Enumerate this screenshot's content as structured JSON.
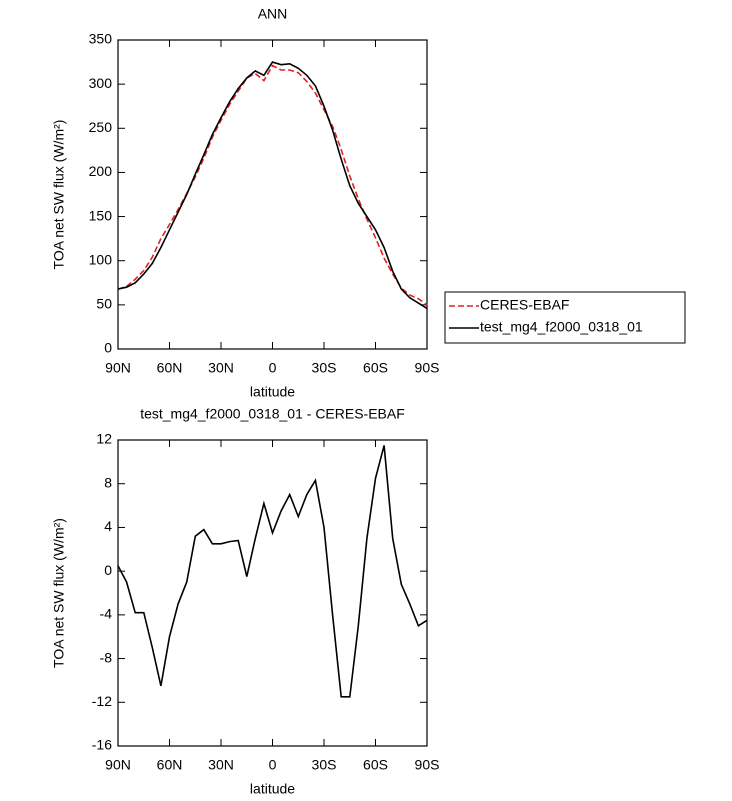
{
  "chart_data": [
    {
      "type": "line",
      "title": "ANN",
      "xlabel": "latitude",
      "ylabel": "TOA net SW flux (W/m²)",
      "x": [
        90,
        85,
        80,
        75,
        70,
        65,
        60,
        55,
        50,
        45,
        40,
        35,
        30,
        25,
        20,
        15,
        10,
        5,
        0,
        -5,
        -10,
        -15,
        -20,
        -25,
        -30,
        -35,
        -40,
        -45,
        -50,
        -55,
        -60,
        -65,
        -70,
        -75,
        -80,
        -85,
        -90
      ],
      "series": [
        {
          "name": "CERES-EBAF",
          "color": "#e02020",
          "dash": true,
          "values": [
            67.5,
            71,
            79,
            89,
            104,
            125,
            141,
            158,
            176,
            195,
            216,
            240,
            259,
            277,
            292,
            307,
            312,
            304,
            321,
            316,
            316,
            313,
            303,
            290,
            271,
            252,
            226,
            196,
            170,
            147,
            126,
            103,
            85,
            69,
            61,
            57,
            50
          ]
        },
        {
          "name": "test_mg4_f2000_0318_01",
          "color": "#000000",
          "dash": false,
          "values": [
            68,
            70,
            75,
            85,
            97,
            115,
            135,
            155,
            175,
            198,
            220,
            243,
            262,
            280,
            295,
            307,
            315,
            310,
            325,
            322,
            323,
            318,
            310,
            298,
            275,
            248,
            215,
            185,
            165,
            150,
            135,
            115,
            88,
            68,
            58,
            52,
            46
          ]
        }
      ],
      "xlim": [
        90,
        -90
      ],
      "xticks": [
        {
          "value": 90,
          "label": "90N"
        },
        {
          "value": 60,
          "label": "60N"
        },
        {
          "value": 30,
          "label": "30N"
        },
        0,
        {
          "value": -30,
          "label": "30S"
        },
        {
          "value": -60,
          "label": "60S"
        },
        {
          "value": -90,
          "label": "90S"
        }
      ],
      "ylim": [
        0,
        350
      ],
      "yticks": [
        0,
        50,
        100,
        150,
        200,
        250,
        300,
        350
      ],
      "legend": "right"
    },
    {
      "type": "line",
      "title": "test_mg4_f2000_0318_01 - CERES-EBAF",
      "xlabel": "latitude",
      "ylabel": "TOA net SW flux (W/m²)",
      "x": [
        90,
        85,
        80,
        75,
        70,
        65,
        60,
        55,
        50,
        45,
        40,
        35,
        30,
        25,
        20,
        15,
        10,
        5,
        0,
        -5,
        -10,
        -15,
        -20,
        -25,
        -30,
        -35,
        -40,
        -45,
        -50,
        -55,
        -60,
        -65,
        -70,
        -75,
        -80,
        -85,
        -90
      ],
      "series": [
        {
          "color": "#000000",
          "values": [
            0.5,
            -1,
            -3.8,
            -3.8,
            -7,
            -10.5,
            -6,
            -3,
            -1,
            3.2,
            3.8,
            2.5,
            2.5,
            2.7,
            2.8,
            -0.5,
            3,
            6.2,
            3.5,
            5.5,
            7,
            5,
            7,
            8.3,
            4,
            -4,
            -11.5,
            -11.5,
            -5,
            3,
            8.5,
            11.5,
            3,
            -1.2,
            -3,
            -5,
            -4.5
          ]
        }
      ],
      "xlim": [
        90,
        -90
      ],
      "xticks": [
        {
          "value": 90,
          "label": "90N"
        },
        {
          "value": 60,
          "label": "60N"
        },
        {
          "value": 30,
          "label": "30N"
        },
        0,
        {
          "value": -30,
          "label": "30S"
        },
        {
          "value": -60,
          "label": "60S"
        },
        {
          "value": -90,
          "label": "90S"
        }
      ],
      "ylim": [
        -16,
        12
      ],
      "yticks": [
        -16,
        -12,
        -8,
        -4,
        0,
        4,
        8,
        12
      ]
    }
  ]
}
